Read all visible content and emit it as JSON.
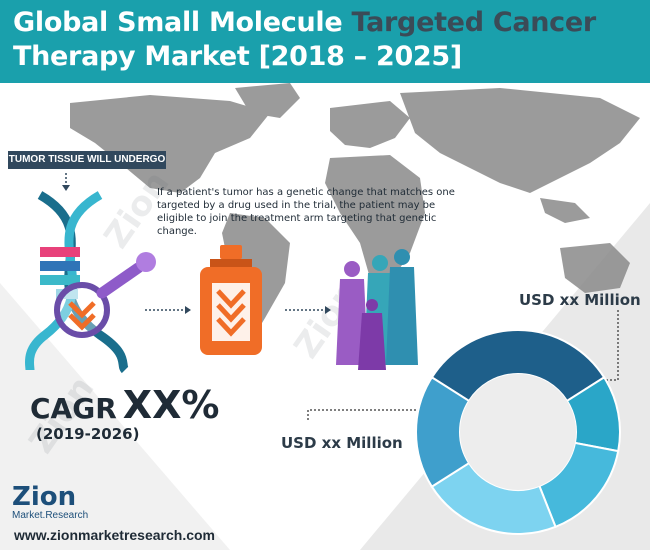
{
  "header": {
    "title_part1": "Global Small Molecule ",
    "title_part2": "Targeted Cancer",
    "title_part3": "Therapy Market [2018 – 2025]"
  },
  "infographic": {
    "tumor_label": "TUMOR TISSUE WILL UNDERGO TESTING",
    "description": "If a patient's tumor has a genetic change that matches one targeted by a drug used in the trial, the patient may be eligible to join the treatment arm targeting that genetic change."
  },
  "cagr": {
    "label": "CAGR",
    "value": "XX%",
    "years": "(2019-2026)"
  },
  "market_values": {
    "top": "USD xx Million",
    "bottom": "USD xx Million"
  },
  "donut": {
    "segment_fractions": [
      0.32,
      0.12,
      0.16,
      0.22,
      0.18
    ],
    "segment_colors": [
      "#1e5f8a",
      "#2aa6c8",
      "#46b9dc",
      "#7dd3f0",
      "#3f9fcc"
    ]
  },
  "brand": {
    "logo_text": "Zion",
    "logo_subtext": "Market.Research",
    "website": "www.zionmarketresearch.com",
    "watermark_text": "Zion",
    "watermark_subtext": "Market.Research"
  },
  "colors": {
    "header_bg": "#1aa0ac",
    "accent_orange": "#f06d27",
    "dark_navy": "#1f2b36"
  }
}
